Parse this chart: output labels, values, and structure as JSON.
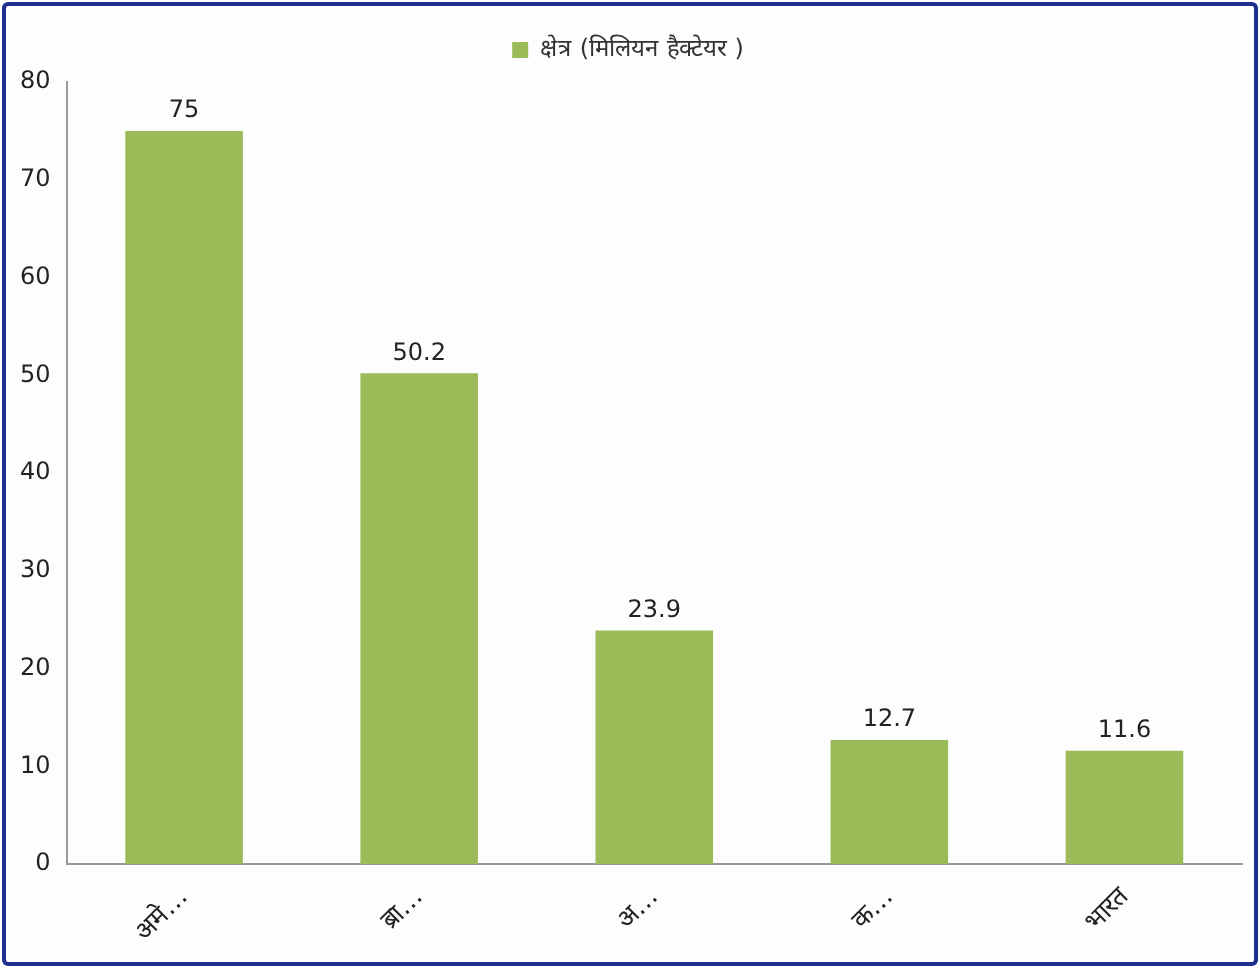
{
  "chart_data": {
    "type": "bar",
    "categories": [
      "अमे…",
      "ब्रा…",
      "अ…",
      "क…",
      "भारत"
    ],
    "series": [
      {
        "name": "क्षेत्र (मिलियन हैक्टेयर )",
        "color": "#9bbb59",
        "values": [
          75,
          50.2,
          23.9,
          12.7,
          11.6
        ]
      }
    ],
    "ylim": [
      0,
      80
    ],
    "yticks": [
      0,
      10,
      20,
      30,
      40,
      50,
      60,
      70,
      80
    ],
    "grid": false,
    "legend": "top",
    "data_labels": true
  }
}
